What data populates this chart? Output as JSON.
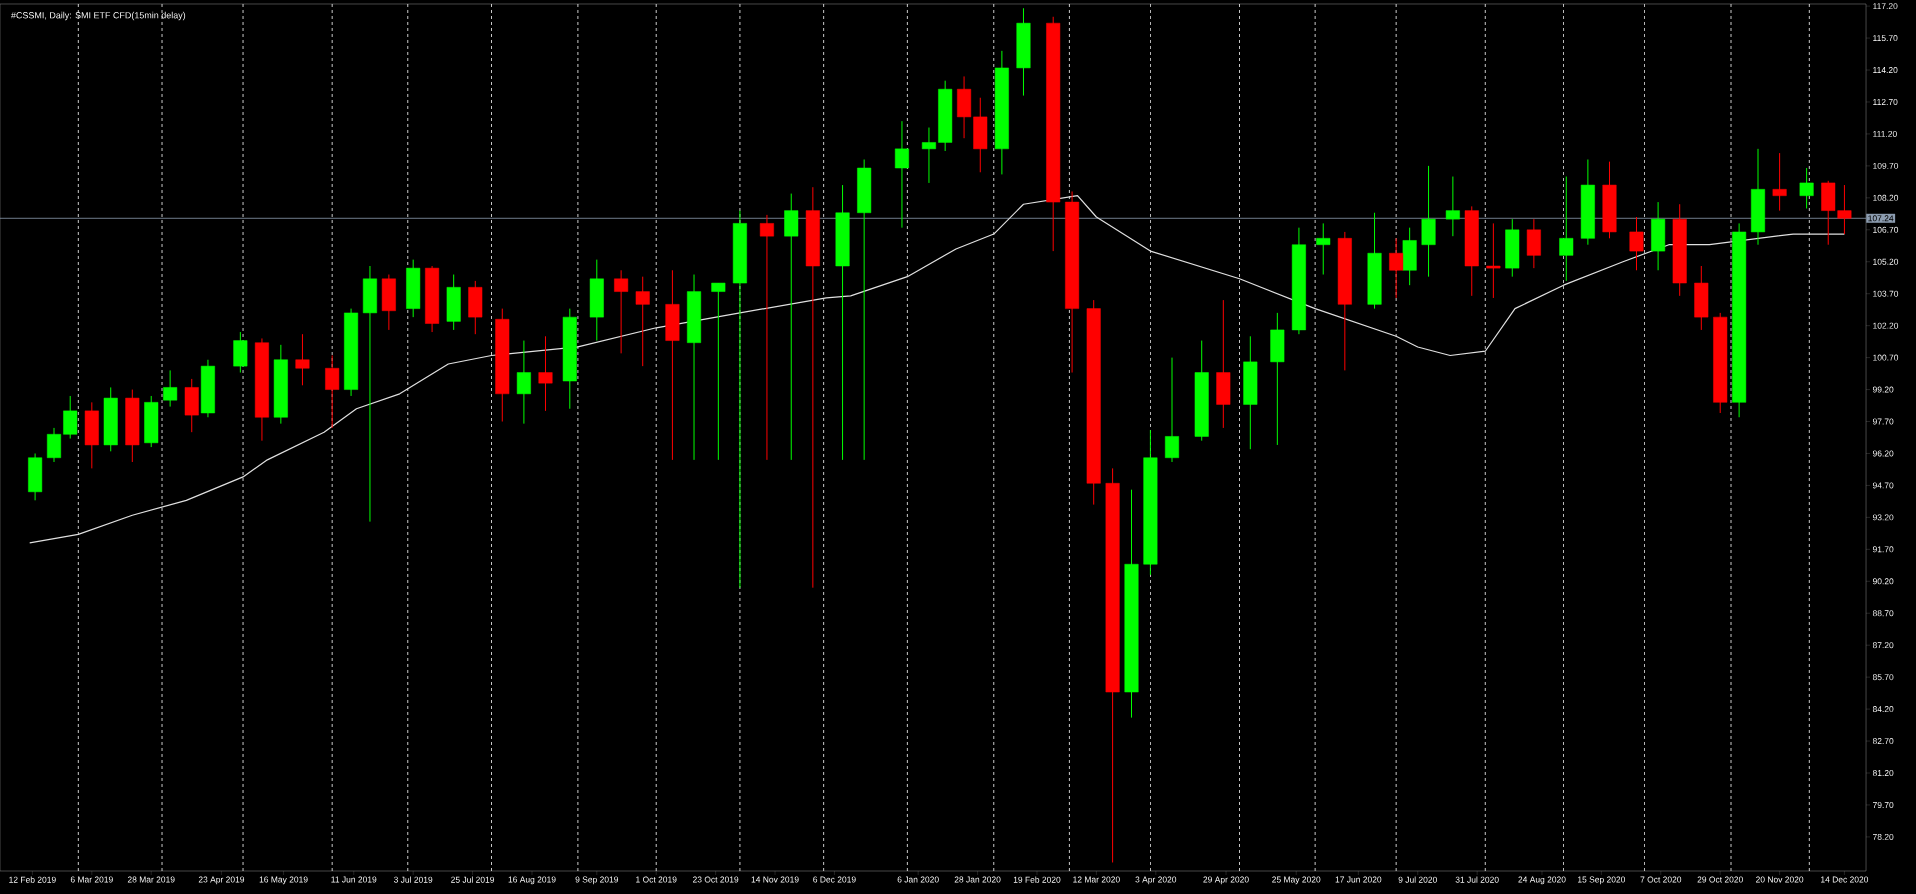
{
  "chart_data": {
    "type": "candlestick",
    "title": "#CSSMI, Daily: SMI ETF CFD(15min delay)",
    "xlim": [
      "2019-01-31",
      "2020-12-22"
    ],
    "ylim": [
      76.6,
      117.3
    ],
    "xticks": [
      {
        "value": "2019-02-12",
        "label": "12 Feb 2019"
      },
      {
        "value": "2019-03-06",
        "label": "6 Mar 2019"
      },
      {
        "value": "2019-03-28",
        "label": "28 Mar 2019"
      },
      {
        "value": "2019-04-23",
        "label": "23 Apr 2019"
      },
      {
        "value": "2019-05-16",
        "label": "16 May 2019"
      },
      {
        "value": "2019-06-11",
        "label": "11 Jun 2019"
      },
      {
        "value": "2019-07-03",
        "label": "3 Jul 2019"
      },
      {
        "value": "2019-07-25",
        "label": "25 Jul 2019"
      },
      {
        "value": "2019-08-16",
        "label": "16 Aug 2019"
      },
      {
        "value": "2019-09-09",
        "label": "9 Sep 2019"
      },
      {
        "value": "2019-10-01",
        "label": "1 Oct 2019"
      },
      {
        "value": "2019-10-23",
        "label": "23 Oct 2019"
      },
      {
        "value": "2019-11-14",
        "label": "14 Nov 2019"
      },
      {
        "value": "2019-12-06",
        "label": "6 Dec 2019"
      },
      {
        "value": "2020-01-06",
        "label": "6 Jan 2020"
      },
      {
        "value": "2020-01-28",
        "label": "28 Jan 2020"
      },
      {
        "value": "2020-02-19",
        "label": "19 Feb 2020"
      },
      {
        "value": "2020-03-12",
        "label": "12 Mar 2020"
      },
      {
        "value": "2020-04-03",
        "label": "3 Apr 2020"
      },
      {
        "value": "2020-04-29",
        "label": "29 Apr 2020"
      },
      {
        "value": "2020-05-25",
        "label": "25 May 2020"
      },
      {
        "value": "2020-06-17",
        "label": "17 Jun 2020"
      },
      {
        "value": "2020-07-09",
        "label": "9 Jul 2020"
      },
      {
        "value": "2020-07-31",
        "label": "31 Jul 2020"
      },
      {
        "value": "2020-08-24",
        "label": "24 Aug 2020"
      },
      {
        "value": "2020-09-15",
        "label": "15 Sep 2020"
      },
      {
        "value": "2020-10-07",
        "label": "7 Oct 2020"
      },
      {
        "value": "2020-10-29",
        "label": "29 Oct 2020"
      },
      {
        "value": "2020-11-20",
        "label": "20 Nov 2020"
      },
      {
        "value": "2020-12-14",
        "label": "14 Dec 2020"
      }
    ],
    "yticks": [
      {
        "value": 78.2,
        "label": "78.20"
      },
      {
        "value": 79.7,
        "label": "79.70"
      },
      {
        "value": 81.2,
        "label": "81.20"
      },
      {
        "value": 82.7,
        "label": "82.70"
      },
      {
        "value": 84.2,
        "label": "84.20"
      },
      {
        "value": 85.7,
        "label": "85.70"
      },
      {
        "value": 87.2,
        "label": "87.20"
      },
      {
        "value": 88.7,
        "label": "88.70"
      },
      {
        "value": 90.2,
        "label": "90.20"
      },
      {
        "value": 91.7,
        "label": "91.70"
      },
      {
        "value": 93.2,
        "label": "93.20"
      },
      {
        "value": 94.7,
        "label": "94.70"
      },
      {
        "value": 96.2,
        "label": "96.20"
      },
      {
        "value": 97.7,
        "label": "97.70"
      },
      {
        "value": 99.2,
        "label": "99.20"
      },
      {
        "value": 100.7,
        "label": "100.70"
      },
      {
        "value": 102.2,
        "label": "102.20"
      },
      {
        "value": 103.7,
        "label": "103.70"
      },
      {
        "value": 105.2,
        "label": "105.20"
      },
      {
        "value": 106.7,
        "label": "106.70"
      },
      {
        "value": 108.2,
        "label": "108.20"
      },
      {
        "value": 109.7,
        "label": "109.70"
      },
      {
        "value": 111.2,
        "label": "111.20"
      },
      {
        "value": 112.7,
        "label": "112.70"
      },
      {
        "value": 114.2,
        "label": "114.20"
      },
      {
        "value": 115.7,
        "label": "115.70"
      },
      {
        "value": 117.2,
        "label": "117.20"
      }
    ],
    "series": [
      {
        "color": "#00ff00",
        "x": [
          "2019-02-13",
          "2019-02-20",
          "2019-02-26",
          "2019-03-13",
          "2019-03-28",
          "2019-04-04",
          "2019-04-18",
          "2019-04-30",
          "2019-05-15",
          "2019-06-10",
          "2019-06-17",
          "2019-07-03",
          "2019-07-18",
          "2019-08-13",
          "2019-08-30",
          "2019-09-09",
          "2019-10-15",
          "2019-10-24",
          "2019-11-01",
          "2019-11-20",
          "2019-12-09",
          "2019-12-17",
          "2019-12-31",
          "2020-01-10",
          "2020-01-16",
          "2020-02-06",
          "2020-02-14",
          "2020-03-25",
          "2020-04-01",
          "2020-04-09",
          "2020-04-20",
          "2020-05-08",
          "2020-05-18",
          "2020-05-26",
          "2020-06-04",
          "2020-06-23",
          "2020-07-06",
          "2020-07-13",
          "2020-07-22",
          "2020-08-13",
          "2020-09-02",
          "2020-09-10",
          "2020-10-06",
          "2020-11-05",
          "2020-11-12",
          "2020-11-30"
        ],
        "ohlc": [
          [
            94.4,
            96.2,
            94.0,
            96.0
          ],
          [
            96.0,
            97.4,
            95.8,
            97.1
          ],
          [
            97.1,
            98.9,
            96.9,
            98.2
          ],
          [
            96.6,
            99.3,
            96.3,
            98.8
          ],
          [
            96.7,
            98.9,
            96.5,
            98.6
          ],
          [
            98.7,
            100.1,
            98.4,
            99.3
          ],
          [
            98.1,
            100.6,
            97.9,
            100.3
          ],
          [
            100.3,
            101.9,
            100.0,
            101.5
          ],
          [
            97.9,
            101.3,
            97.6,
            100.6
          ],
          [
            99.2,
            103.0,
            98.9,
            102.8
          ],
          [
            102.8,
            105.0,
            93.0,
            104.4
          ],
          [
            103.0,
            105.3,
            102.6,
            104.9
          ],
          [
            102.4,
            104.6,
            102.0,
            104.0
          ],
          [
            99.0,
            101.5,
            97.6,
            100.0
          ],
          [
            99.6,
            103.0,
            98.3,
            102.6
          ],
          [
            102.6,
            105.3,
            101.5,
            104.4
          ],
          [
            101.4,
            104.6,
            95.9,
            103.8
          ],
          [
            103.8,
            104.2,
            95.9,
            104.2
          ],
          [
            104.2,
            107.6,
            89.9,
            107.0
          ],
          [
            106.4,
            108.4,
            95.9,
            107.6
          ],
          [
            105.0,
            108.8,
            95.9,
            107.5
          ],
          [
            107.5,
            110.0,
            95.9,
            109.6
          ],
          [
            109.6,
            111.8,
            106.8,
            110.5
          ],
          [
            110.5,
            111.5,
            108.9,
            110.8
          ],
          [
            110.8,
            113.7,
            110.4,
            113.3
          ],
          [
            110.5,
            115.1,
            109.3,
            114.3
          ],
          [
            114.3,
            117.1,
            113.0,
            116.4
          ],
          [
            85.0,
            94.5,
            83.8,
            91.0
          ],
          [
            91.0,
            97.3,
            90.5,
            96.0
          ],
          [
            96.0,
            100.7,
            95.8,
            97.0
          ],
          [
            97.0,
            101.5,
            96.8,
            100.0
          ],
          [
            98.5,
            101.7,
            96.4,
            100.5
          ],
          [
            100.5,
            102.8,
            96.6,
            102.0
          ],
          [
            102.0,
            106.8,
            101.8,
            106.0
          ],
          [
            106.0,
            107.0,
            104.6,
            106.3
          ],
          [
            103.2,
            107.5,
            103.0,
            105.6
          ],
          [
            104.8,
            106.8,
            104.1,
            106.2
          ],
          [
            106.0,
            109.7,
            104.5,
            107.2
          ],
          [
            107.2,
            109.2,
            106.4,
            107.6
          ],
          [
            104.9,
            107.2,
            104.5,
            106.7
          ],
          [
            105.5,
            109.2,
            104.3,
            106.3
          ],
          [
            106.3,
            110.0,
            106.0,
            108.8
          ],
          [
            105.7,
            108.0,
            104.8,
            107.2
          ],
          [
            98.6,
            107.0,
            97.9,
            106.6
          ],
          [
            106.6,
            110.5,
            106.0,
            108.6
          ],
          [
            108.3,
            109.6,
            107.7,
            108.9
          ]
        ]
      },
      {
        "color": "#ff0000",
        "x": [
          "2019-03-06",
          "2019-03-21",
          "2019-04-12",
          "2019-05-08",
          "2019-05-23",
          "2019-06-03",
          "2019-06-24",
          "2019-07-10",
          "2019-07-26",
          "2019-08-05",
          "2019-08-21",
          "2019-09-18",
          "2019-09-26",
          "2019-10-07",
          "2019-11-11",
          "2019-11-28",
          "2020-01-23",
          "2020-01-29",
          "2020-02-25",
          "2020-03-03",
          "2020-03-11",
          "2020-03-18",
          "2020-04-28",
          "2020-06-12",
          "2020-07-01",
          "2020-07-29",
          "2020-08-06",
          "2020-08-21",
          "2020-09-18",
          "2020-09-28",
          "2020-10-14",
          "2020-10-22",
          "2020-10-29",
          "2020-11-20",
          "2020-12-08",
          "2020-12-14"
        ],
        "ohlc": [
          [
            98.2,
            98.6,
            95.5,
            96.6
          ],
          [
            98.8,
            99.2,
            95.8,
            96.6
          ],
          [
            99.3,
            99.7,
            97.2,
            98.0
          ],
          [
            101.4,
            101.6,
            96.8,
            97.9
          ],
          [
            100.6,
            101.8,
            99.4,
            100.2
          ],
          [
            100.2,
            100.8,
            97.4,
            99.2
          ],
          [
            104.4,
            104.6,
            102.0,
            102.9
          ],
          [
            104.9,
            105.0,
            101.9,
            102.3
          ],
          [
            104.0,
            104.3,
            101.8,
            102.6
          ],
          [
            102.5,
            103.0,
            97.7,
            99.0
          ],
          [
            100.0,
            101.7,
            98.2,
            99.5
          ],
          [
            104.4,
            104.8,
            100.9,
            103.8
          ],
          [
            103.8,
            104.5,
            100.3,
            103.2
          ],
          [
            103.2,
            104.8,
            95.9,
            101.5
          ],
          [
            107.0,
            107.4,
            95.9,
            106.4
          ],
          [
            107.6,
            108.7,
            89.9,
            105.0
          ],
          [
            113.3,
            113.9,
            111.0,
            112.0
          ],
          [
            112.0,
            112.9,
            109.4,
            110.5
          ],
          [
            116.4,
            116.7,
            105.7,
            108.0
          ],
          [
            108.0,
            108.5,
            100.0,
            103.0
          ],
          [
            103.0,
            103.4,
            93.8,
            94.8
          ],
          [
            94.8,
            95.5,
            77.0,
            85.0
          ],
          [
            100.0,
            103.4,
            97.4,
            98.5
          ],
          [
            106.3,
            106.6,
            100.1,
            103.2
          ],
          [
            105.6,
            106.3,
            103.5,
            104.8
          ],
          [
            107.6,
            107.8,
            103.6,
            105.0
          ],
          [
            105.0,
            107.0,
            103.5,
            104.9
          ],
          [
            106.7,
            107.2,
            104.9,
            105.5
          ],
          [
            108.8,
            109.9,
            106.3,
            106.6
          ],
          [
            106.6,
            107.3,
            104.8,
            105.7
          ],
          [
            107.2,
            107.9,
            103.6,
            104.2
          ],
          [
            104.2,
            105.0,
            102.0,
            102.6
          ],
          [
            102.6,
            102.8,
            98.1,
            98.6
          ],
          [
            108.6,
            110.3,
            107.6,
            108.3
          ],
          [
            108.9,
            109.0,
            106.0,
            107.6
          ],
          [
            107.6,
            108.8,
            106.5,
            107.24
          ]
        ]
      },
      {
        "type": "line",
        "color": "#e0e0e0",
        "x": [
          "2019-02-11",
          "2019-03-01",
          "2019-03-21",
          "2019-04-10",
          "2019-05-01",
          "2019-05-10",
          "2019-05-31",
          "2019-06-12",
          "2019-06-28",
          "2019-07-16",
          "2019-08-01",
          "2019-09-02",
          "2019-10-01",
          "2019-11-01",
          "2019-12-03",
          "2019-12-12",
          "2020-01-02",
          "2020-01-20",
          "2020-02-03",
          "2020-02-14",
          "2020-03-05",
          "2020-03-12",
          "2020-04-01",
          "2020-05-04",
          "2020-06-01",
          "2020-07-01",
          "2020-07-09",
          "2020-07-21",
          "2020-08-03",
          "2020-08-14",
          "2020-09-01",
          "2020-09-23",
          "2020-10-10",
          "2020-10-25",
          "2020-11-25",
          "2020-12-14"
        ],
        "values": [
          92.0,
          92.4,
          93.3,
          94.0,
          95.1,
          95.9,
          97.2,
          98.3,
          99.0,
          100.4,
          100.8,
          101.2,
          102.1,
          102.8,
          103.5,
          103.6,
          104.5,
          105.8,
          106.5,
          107.9,
          108.3,
          107.3,
          105.7,
          104.4,
          103.0,
          101.7,
          101.2,
          100.8,
          101.0,
          103.0,
          104.1,
          105.2,
          106.0,
          106.0,
          106.5,
          106.5
        ]
      }
    ],
    "ref_lines": [
      {
        "axis": "y",
        "value": 107.24,
        "label": "107.24",
        "color": "#8c9cb0",
        "line_style": "solid"
      },
      {
        "axis": "x",
        "value": "2019-03-01",
        "color": "#ffffff",
        "line_style": "dashed"
      },
      {
        "axis": "x",
        "value": "2019-04-01",
        "color": "#ffffff",
        "line_style": "dashed"
      },
      {
        "axis": "x",
        "value": "2019-05-01",
        "color": "#ffffff",
        "line_style": "dashed"
      },
      {
        "axis": "x",
        "value": "2019-06-03",
        "color": "#ffffff",
        "line_style": "dashed"
      },
      {
        "axis": "x",
        "value": "2019-07-01",
        "color": "#ffffff",
        "line_style": "dashed"
      },
      {
        "axis": "x",
        "value": "2019-08-01",
        "color": "#ffffff",
        "line_style": "dashed"
      },
      {
        "axis": "x",
        "value": "2019-09-02",
        "color": "#ffffff",
        "line_style": "dashed"
      },
      {
        "axis": "x",
        "value": "2019-10-01",
        "color": "#ffffff",
        "line_style": "dashed"
      },
      {
        "axis": "x",
        "value": "2019-11-01",
        "color": "#ffffff",
        "line_style": "dashed"
      },
      {
        "axis": "x",
        "value": "2019-12-02",
        "color": "#ffffff",
        "line_style": "dashed"
      },
      {
        "axis": "x",
        "value": "2020-01-02",
        "color": "#ffffff",
        "line_style": "dashed"
      },
      {
        "axis": "x",
        "value": "2020-02-03",
        "color": "#ffffff",
        "line_style": "dashed"
      },
      {
        "axis": "x",
        "value": "2020-03-02",
        "color": "#ffffff",
        "line_style": "dashed"
      },
      {
        "axis": "x",
        "value": "2020-04-01",
        "color": "#ffffff",
        "line_style": "dashed"
      },
      {
        "axis": "x",
        "value": "2020-05-04",
        "color": "#ffffff",
        "line_style": "dashed"
      },
      {
        "axis": "x",
        "value": "2020-06-01",
        "color": "#ffffff",
        "line_style": "dashed"
      },
      {
        "axis": "x",
        "value": "2020-07-01",
        "color": "#ffffff",
        "line_style": "dashed"
      },
      {
        "axis": "x",
        "value": "2020-08-03",
        "color": "#ffffff",
        "line_style": "dashed"
      },
      {
        "axis": "x",
        "value": "2020-09-01",
        "color": "#ffffff",
        "line_style": "dashed"
      },
      {
        "axis": "x",
        "value": "2020-10-01",
        "color": "#ffffff",
        "line_style": "dashed"
      },
      {
        "axis": "x",
        "value": "2020-11-02",
        "color": "#ffffff",
        "line_style": "dashed"
      },
      {
        "axis": "x",
        "value": "2020-12-01",
        "color": "#ffffff",
        "line_style": "dashed"
      }
    ]
  }
}
